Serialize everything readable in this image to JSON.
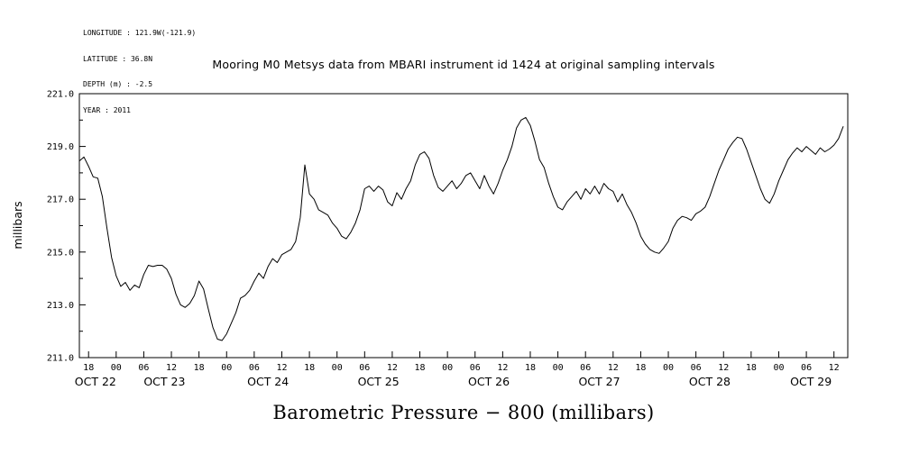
{
  "metadata": {
    "longitude": "LONGITUDE : 121.9W(-121.9)",
    "latitude": "LATITUDE : 36.8N",
    "depth": "DEPTH (m) : -2.5",
    "year": "YEAR : 2011"
  },
  "chart_data": {
    "type": "line",
    "title": "Mooring M0 Metsys data from MBARI instrument id 1424 at original sampling intervals",
    "xlabel": "Barometric Pressure − 800 (millibars)",
    "ylabel": "millibars",
    "ylim": [
      211.0,
      221.0
    ],
    "yticks": [
      {
        "value": 221.0,
        "label": "221.0"
      },
      {
        "value": 219.0,
        "label": "219.0"
      },
      {
        "value": 217.0,
        "label": "217.0"
      },
      {
        "value": 215.0,
        "label": "215.0"
      },
      {
        "value": 213.0,
        "label": "213.0"
      },
      {
        "value": 211.0,
        "label": "211.0"
      }
    ],
    "x_unit_note": "hours since OCT 22 00:00 (2011)",
    "xlim": [
      16,
      183
    ],
    "x_major_ticks": {
      "hours": [
        18,
        24,
        30,
        36,
        42,
        48,
        54,
        60,
        66,
        72,
        78,
        84,
        90,
        96,
        102,
        108,
        114,
        120,
        126,
        132,
        138,
        144,
        150,
        156,
        162,
        168,
        174,
        180
      ],
      "labels": [
        "18",
        "00",
        "06",
        "12",
        "18",
        "00",
        "06",
        "12",
        "18",
        "00",
        "06",
        "12",
        "18",
        "00",
        "06",
        "12",
        "18",
        "00",
        "06",
        "12",
        "18",
        "00",
        "06",
        "12",
        "18",
        "00",
        "06",
        "12"
      ]
    },
    "day_labels": [
      {
        "label": "OCT 22",
        "hour": 19.5
      },
      {
        "label": "OCT 23",
        "hour": 34.5
      },
      {
        "label": "OCT 24",
        "hour": 57
      },
      {
        "label": "OCT 25",
        "hour": 81
      },
      {
        "label": "OCT 26",
        "hour": 105
      },
      {
        "label": "OCT 27",
        "hour": 129
      },
      {
        "label": "OCT 28",
        "hour": 153
      },
      {
        "label": "OCT 29",
        "hour": 175
      }
    ],
    "grid": false,
    "legend": "none",
    "line_color": "#000000",
    "series": {
      "name": "barometric pressure - 800 (millibars)",
      "x_hours_start": 16,
      "x_hours_step": 1,
      "values": [
        218.45,
        218.6,
        218.25,
        217.85,
        217.8,
        217.1,
        215.9,
        214.8,
        214.1,
        213.7,
        213.85,
        213.55,
        213.75,
        213.65,
        214.15,
        214.5,
        214.45,
        214.5,
        214.5,
        214.35,
        214.0,
        213.4,
        213.0,
        212.9,
        213.05,
        213.35,
        213.9,
        213.6,
        212.85,
        212.15,
        211.7,
        211.65,
        211.9,
        212.3,
        212.7,
        213.25,
        213.35,
        213.55,
        213.9,
        214.2,
        214.0,
        214.45,
        214.75,
        214.6,
        214.9,
        215.0,
        215.1,
        215.4,
        216.3,
        218.3,
        217.2,
        217.0,
        216.6,
        216.5,
        216.4,
        216.1,
        215.9,
        215.6,
        215.5,
        215.75,
        216.1,
        216.6,
        217.4,
        217.5,
        217.3,
        217.5,
        217.35,
        216.9,
        216.75,
        217.25,
        217.0,
        217.4,
        217.7,
        218.3,
        218.7,
        218.8,
        218.55,
        217.9,
        217.45,
        217.3,
        217.5,
        217.7,
        217.4,
        217.6,
        217.9,
        218.0,
        217.7,
        217.4,
        217.9,
        217.5,
        217.2,
        217.6,
        218.1,
        218.5,
        219.0,
        219.7,
        220.0,
        220.1,
        219.8,
        219.2,
        218.5,
        218.2,
        217.6,
        217.1,
        216.7,
        216.6,
        216.9,
        217.1,
        217.3,
        217.0,
        217.4,
        217.2,
        217.5,
        217.2,
        217.6,
        217.4,
        217.3,
        216.9,
        217.2,
        216.8,
        216.5,
        216.1,
        215.6,
        215.3,
        215.1,
        215.0,
        214.95,
        215.15,
        215.4,
        215.9,
        216.2,
        216.35,
        216.3,
        216.2,
        216.45,
        216.55,
        216.7,
        217.1,
        217.6,
        218.1,
        218.5,
        218.9,
        219.15,
        219.35,
        219.3,
        218.9,
        218.4,
        217.9,
        217.4,
        217.0,
        216.85,
        217.2,
        217.7,
        218.1,
        218.5,
        218.75,
        218.95,
        218.8,
        219.0,
        218.85,
        218.7,
        218.95,
        218.8,
        218.9,
        219.05,
        219.3,
        219.75
      ]
    }
  }
}
